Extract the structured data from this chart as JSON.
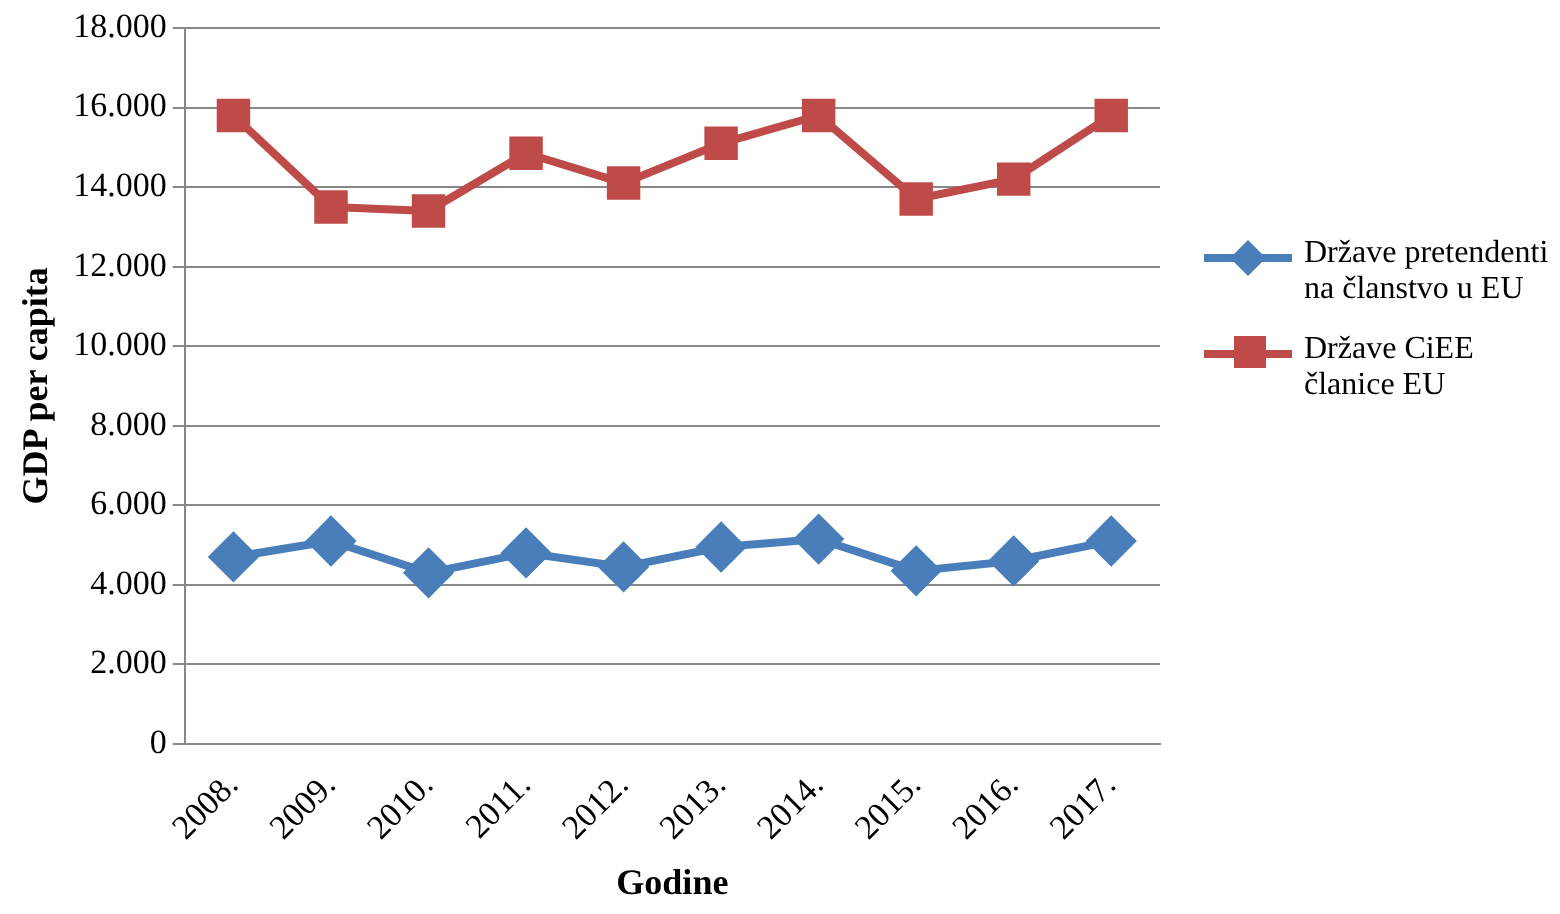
{
  "chart_data": {
    "type": "line",
    "xlabel": "Godine",
    "ylabel": "GDP per capita",
    "categories": [
      "2008.",
      "2009.",
      "2010.",
      "2011.",
      "2012.",
      "2013.",
      "2014.",
      "2015.",
      "2016.",
      "2017."
    ],
    "series": [
      {
        "name": "Države pretendenti na članstvo u EU",
        "color": "#4a7ebb",
        "marker": "diamond",
        "values": [
          4700,
          5100,
          4300,
          4800,
          4450,
          4950,
          5150,
          4350,
          4600,
          5100
        ]
      },
      {
        "name": "Države CiEE članice EU",
        "color": "#be4b48",
        "marker": "square",
        "values": [
          15800,
          13500,
          13400,
          14850,
          14100,
          15100,
          15800,
          13700,
          14200,
          15800
        ]
      }
    ],
    "ylim": [
      0,
      18000
    ],
    "yticks": [
      {
        "value": 0,
        "label": "0"
      },
      {
        "value": 2000,
        "label": "2.000"
      },
      {
        "value": 4000,
        "label": "4.000"
      },
      {
        "value": 6000,
        "label": "6.000"
      },
      {
        "value": 8000,
        "label": "8.000"
      },
      {
        "value": 10000,
        "label": "10.000"
      },
      {
        "value": 12000,
        "label": "12.000"
      },
      {
        "value": 14000,
        "label": "14.000"
      },
      {
        "value": 16000,
        "label": "16.000"
      },
      {
        "value": 18000,
        "label": "18.000"
      }
    ],
    "grid": "y",
    "legend": "right",
    "line_style": "solid"
  }
}
